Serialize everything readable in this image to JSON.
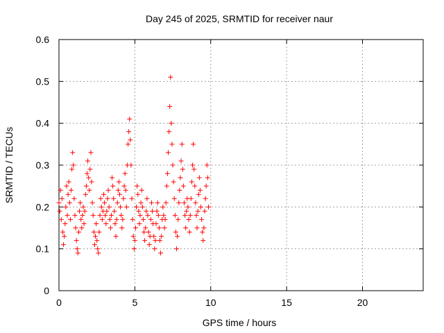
{
  "chart_data": {
    "type": "scatter",
    "title": "Day 245 of 2025, SRMTID for receiver naur",
    "xlabel": "GPS time / hours",
    "ylabel": "SRMTID / TECUs",
    "xlim": [
      0,
      24
    ],
    "ylim": [
      0,
      0.6
    ],
    "xticks": [
      0,
      5,
      10,
      15,
      20
    ],
    "yticks": [
      0,
      0.1,
      0.2,
      0.3,
      0.4,
      0.5,
      0.6
    ],
    "xtick_labels": [
      "0",
      "5",
      "10",
      "15",
      "20"
    ],
    "ytick_labels": [
      "0",
      "0.1",
      "0.2",
      "0.3",
      "0.4",
      "0.5",
      "0.6"
    ],
    "grid": true,
    "marker": "+",
    "marker_color": "#ff0000",
    "series": [
      {
        "name": "SRMTID",
        "points": [
          [
            0.0,
            0.21
          ],
          [
            0.05,
            0.19
          ],
          [
            0.1,
            0.24
          ],
          [
            0.15,
            0.17
          ],
          [
            0.2,
            0.22
          ],
          [
            0.25,
            0.14
          ],
          [
            0.3,
            0.11
          ],
          [
            0.35,
            0.13
          ],
          [
            0.4,
            0.16
          ],
          [
            0.45,
            0.2
          ],
          [
            0.5,
            0.25
          ],
          [
            0.55,
            0.18
          ],
          [
            0.6,
            0.23
          ],
          [
            0.65,
            0.26
          ],
          [
            0.7,
            0.21
          ],
          [
            0.75,
            0.17
          ],
          [
            0.8,
            0.24
          ],
          [
            0.85,
            0.29
          ],
          [
            0.9,
            0.33
          ],
          [
            0.95,
            0.3
          ],
          [
            1.0,
            0.22
          ],
          [
            1.05,
            0.18
          ],
          [
            1.1,
            0.15
          ],
          [
            1.15,
            0.12
          ],
          [
            1.2,
            0.1
          ],
          [
            1.25,
            0.09
          ],
          [
            1.3,
            0.14
          ],
          [
            1.35,
            0.19
          ],
          [
            1.4,
            0.21
          ],
          [
            1.45,
            0.17
          ],
          [
            1.5,
            0.15
          ],
          [
            1.55,
            0.18
          ],
          [
            1.6,
            0.2
          ],
          [
            1.65,
            0.16
          ],
          [
            1.7,
            0.19
          ],
          [
            1.75,
            0.23
          ],
          [
            1.8,
            0.25
          ],
          [
            1.85,
            0.28
          ],
          [
            1.9,
            0.31
          ],
          [
            1.95,
            0.27
          ],
          [
            2.0,
            0.24
          ],
          [
            2.05,
            0.29
          ],
          [
            2.1,
            0.33
          ],
          [
            2.15,
            0.26
          ],
          [
            2.2,
            0.21
          ],
          [
            2.25,
            0.18
          ],
          [
            2.3,
            0.14
          ],
          [
            2.35,
            0.11
          ],
          [
            2.4,
            0.13
          ],
          [
            2.45,
            0.16
          ],
          [
            2.5,
            0.12
          ],
          [
            2.55,
            0.1
          ],
          [
            2.6,
            0.09
          ],
          [
            2.65,
            0.14
          ],
          [
            2.7,
            0.18
          ],
          [
            2.75,
            0.22
          ],
          [
            2.8,
            0.2
          ],
          [
            2.85,
            0.17
          ],
          [
            2.9,
            0.19
          ],
          [
            2.95,
            0.23
          ],
          [
            3.0,
            0.21
          ],
          [
            3.05,
            0.18
          ],
          [
            3.1,
            0.16
          ],
          [
            3.15,
            0.19
          ],
          [
            3.2,
            0.22
          ],
          [
            3.25,
            0.24
          ],
          [
            3.3,
            0.2
          ],
          [
            3.35,
            0.17
          ],
          [
            3.4,
            0.15
          ],
          [
            3.45,
            0.18
          ],
          [
            3.5,
            0.27
          ],
          [
            3.55,
            0.25
          ],
          [
            3.6,
            0.22
          ],
          [
            3.65,
            0.19
          ],
          [
            3.7,
            0.16
          ],
          [
            3.75,
            0.13
          ],
          [
            3.8,
            0.17
          ],
          [
            3.85,
            0.21
          ],
          [
            3.9,
            0.24
          ],
          [
            3.95,
            0.26
          ],
          [
            4.0,
            0.23
          ],
          [
            4.05,
            0.2
          ],
          [
            4.1,
            0.18
          ],
          [
            4.15,
            0.15
          ],
          [
            4.2,
            0.17
          ],
          [
            4.25,
            0.22
          ],
          [
            4.3,
            0.25
          ],
          [
            4.35,
            0.28
          ],
          [
            4.4,
            0.24
          ],
          [
            4.45,
            0.2
          ],
          [
            4.5,
            0.3
          ],
          [
            4.55,
            0.35
          ],
          [
            4.6,
            0.38
          ],
          [
            4.65,
            0.41
          ],
          [
            4.7,
            0.36
          ],
          [
            4.75,
            0.3
          ],
          [
            4.8,
            0.22
          ],
          [
            4.85,
            0.17
          ],
          [
            4.9,
            0.13
          ],
          [
            4.95,
            0.1
          ],
          [
            5.0,
            0.12
          ],
          [
            5.05,
            0.15
          ],
          [
            5.1,
            0.2
          ],
          [
            5.15,
            0.25
          ],
          [
            5.2,
            0.23
          ],
          [
            5.25,
            0.19
          ],
          [
            5.3,
            0.16
          ],
          [
            5.35,
            0.18
          ],
          [
            5.4,
            0.21
          ],
          [
            5.45,
            0.24
          ],
          [
            5.5,
            0.2
          ],
          [
            5.55,
            0.17
          ],
          [
            5.6,
            0.14
          ],
          [
            5.65,
            0.12
          ],
          [
            5.7,
            0.15
          ],
          [
            5.75,
            0.19
          ],
          [
            5.8,
            0.22
          ],
          [
            5.85,
            0.18
          ],
          [
            5.9,
            0.14
          ],
          [
            5.95,
            0.11
          ],
          [
            6.0,
            0.13
          ],
          [
            6.05,
            0.17
          ],
          [
            6.1,
            0.21
          ],
          [
            6.15,
            0.19
          ],
          [
            6.2,
            0.16
          ],
          [
            6.25,
            0.13
          ],
          [
            6.3,
            0.1
          ],
          [
            6.35,
            0.12
          ],
          [
            6.4,
            0.16
          ],
          [
            6.45,
            0.19
          ],
          [
            6.5,
            0.21
          ],
          [
            6.55,
            0.18
          ],
          [
            6.6,
            0.15
          ],
          [
            6.65,
            0.12
          ],
          [
            6.7,
            0.09
          ],
          [
            6.75,
            0.13
          ],
          [
            6.8,
            0.17
          ],
          [
            6.85,
            0.2
          ],
          [
            6.9,
            0.18
          ],
          [
            6.95,
            0.15
          ],
          [
            7.0,
            0.17
          ],
          [
            7.05,
            0.21
          ],
          [
            7.1,
            0.25
          ],
          [
            7.15,
            0.28
          ],
          [
            7.2,
            0.33
          ],
          [
            7.25,
            0.38
          ],
          [
            7.3,
            0.44
          ],
          [
            7.35,
            0.51
          ],
          [
            7.4,
            0.4
          ],
          [
            7.45,
            0.35
          ],
          [
            7.5,
            0.3
          ],
          [
            7.55,
            0.26
          ],
          [
            7.6,
            0.22
          ],
          [
            7.65,
            0.18
          ],
          [
            7.7,
            0.14
          ],
          [
            7.75,
            0.1
          ],
          [
            7.8,
            0.13
          ],
          [
            7.85,
            0.17
          ],
          [
            7.9,
            0.21
          ],
          [
            7.95,
            0.24
          ],
          [
            8.0,
            0.27
          ],
          [
            8.05,
            0.31
          ],
          [
            8.1,
            0.35
          ],
          [
            8.15,
            0.29
          ],
          [
            8.2,
            0.25
          ],
          [
            8.25,
            0.21
          ],
          [
            8.3,
            0.18
          ],
          [
            8.35,
            0.15
          ],
          [
            8.4,
            0.19
          ],
          [
            8.45,
            0.22
          ],
          [
            8.5,
            0.2
          ],
          [
            8.55,
            0.17
          ],
          [
            8.6,
            0.14
          ],
          [
            8.65,
            0.18
          ],
          [
            8.7,
            0.22
          ],
          [
            8.75,
            0.26
          ],
          [
            8.8,
            0.3
          ],
          [
            8.85,
            0.35
          ],
          [
            8.9,
            0.29
          ],
          [
            8.95,
            0.25
          ],
          [
            9.0,
            0.21
          ],
          [
            9.05,
            0.18
          ],
          [
            9.1,
            0.15
          ],
          [
            9.15,
            0.19
          ],
          [
            9.2,
            0.23
          ],
          [
            9.25,
            0.27
          ],
          [
            9.3,
            0.24
          ],
          [
            9.35,
            0.2
          ],
          [
            9.4,
            0.17
          ],
          [
            9.45,
            0.14
          ],
          [
            9.5,
            0.12
          ],
          [
            9.55,
            0.15
          ],
          [
            9.6,
            0.19
          ],
          [
            9.65,
            0.22
          ],
          [
            9.7,
            0.25
          ],
          [
            9.75,
            0.3
          ],
          [
            9.8,
            0.27
          ],
          [
            9.85,
            0.2
          ]
        ]
      }
    ]
  }
}
